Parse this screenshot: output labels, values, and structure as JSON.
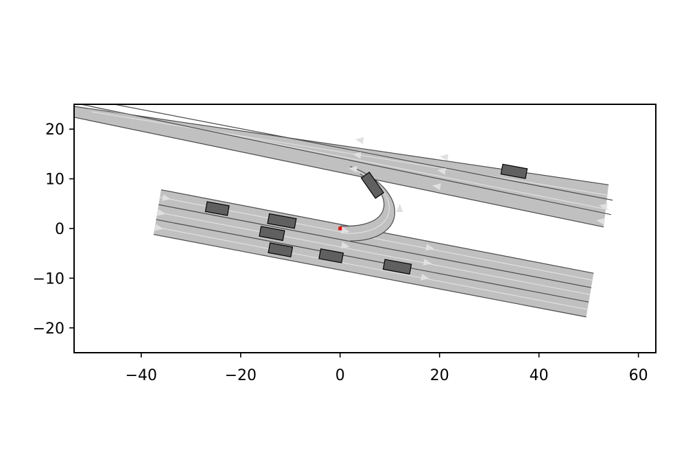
{
  "chart_data": {
    "type": "scatter",
    "title": "",
    "xlabel": "",
    "ylabel": "",
    "xlim": [
      -53.5,
      63.5
    ],
    "ylim": [
      -25,
      25
    ],
    "x_ticks": [
      -40,
      -20,
      0,
      20,
      40,
      60
    ],
    "y_ticks": [
      -20,
      -10,
      0,
      10,
      20
    ],
    "x_tick_labels": [
      "−40",
      "−20",
      "0",
      "20",
      "40",
      "60"
    ],
    "y_tick_labels": [
      "−20",
      "−10",
      "0",
      "10",
      "20"
    ],
    "grid": false,
    "colors": {
      "road": "#c0c0c0",
      "road_edge": "#4a4a4a",
      "lane_center": "#e0e0e0",
      "vehicle_fill": "#606060",
      "vehicle_edge": "#000000",
      "ego_marker": "#ff0000"
    },
    "roads": [
      {
        "name": "upper-road",
        "edges": [
          [
            [
              -55,
              24.8
            ],
            [
              54,
              8.8
            ]
          ],
          [
            [
              -55,
              22.7
            ],
            [
              53,
              0.3
            ]
          ]
        ],
        "dividers": [
          [
            [
              -55,
              25.6
            ],
            [
              54.5,
              2.8
            ]
          ],
          [
            [
              -47,
              25.3
            ],
            [
              54.8,
              5.7
            ]
          ]
        ],
        "lane_centers": [
          [
            [
              -50,
              24.4
            ],
            [
              54,
              3.8
            ]
          ],
          [
            [
              -50,
              23.5
            ],
            [
              54,
              6.7
            ]
          ]
        ],
        "arrows": [
          {
            "x": 4,
            "y": 17.8,
            "dir": -1
          },
          {
            "x": 3.5,
            "y": 14.8,
            "dir": -1
          },
          {
            "x": 2.7,
            "y": 12.0,
            "dir": -1
          },
          {
            "x": 21,
            "y": 14.4,
            "dir": -1
          },
          {
            "x": 20.5,
            "y": 11.6,
            "dir": -1
          },
          {
            "x": 19.5,
            "y": 8.5,
            "dir": -1
          },
          {
            "x": 53,
            "y": 4.5,
            "dir": -1
          },
          {
            "x": 52.5,
            "y": 1.5,
            "dir": -1
          }
        ]
      },
      {
        "name": "lower-road",
        "edges": [
          [
            [
              -36,
              7.8
            ],
            [
              51,
              -9
            ]
          ],
          [
            [
              -37.5,
              -1.2
            ],
            [
              49.5,
              -17.8
            ]
          ]
        ],
        "dividers": [
          [
            [
              -36.5,
              4.8
            ],
            [
              50.5,
              -11.9
            ]
          ],
          [
            [
              -37,
              1.8
            ],
            [
              50,
              -14.8
            ]
          ]
        ],
        "lane_centers": [
          [
            [
              -36.3,
              6.3
            ],
            [
              50.8,
              -10.4
            ]
          ],
          [
            [
              -36.8,
              3.3
            ],
            [
              50.3,
              -13.3
            ]
          ],
          [
            [
              -37.2,
              0.3
            ],
            [
              49.8,
              -16.3
            ]
          ]
        ],
        "arrows": [
          {
            "x": -35,
            "y": 6.1,
            "dir": 1
          },
          {
            "x": -36,
            "y": 3.1,
            "dir": 1
          },
          {
            "x": -36.5,
            "y": 0.1,
            "dir": 1
          },
          {
            "x": 1,
            "y": -0.5,
            "dir": 1
          },
          {
            "x": 1,
            "y": -3.5,
            "dir": 1
          },
          {
            "x": 18,
            "y": -3.9,
            "dir": 1
          },
          {
            "x": 17.5,
            "y": -6.9,
            "dir": 1
          },
          {
            "x": 17,
            "y": -9.9,
            "dir": 1
          }
        ]
      }
    ],
    "u_turn": {
      "outer": [
        [
          2,
          12.5
        ],
        [
          14,
          8
        ],
        [
          14,
          -2.5
        ],
        [
          2,
          -2.5
        ]
      ],
      "inner": [
        [
          4,
          11
        ],
        [
          11,
          7
        ],
        [
          11,
          0
        ],
        [
          0,
          0.5
        ]
      ],
      "arrow": {
        "x": 12,
        "y": 4,
        "dir": "up"
      }
    },
    "vehicles": [
      {
        "x": 35,
        "y": 11.5,
        "length": 5,
        "width": 2,
        "heading": -10.4
      },
      {
        "x": -24.7,
        "y": 4,
        "length": 4.5,
        "width": 2,
        "heading": -10.4
      },
      {
        "x": -11.7,
        "y": 1.5,
        "length": 5.5,
        "width": 2,
        "heading": -10.4
      },
      {
        "x": -13.7,
        "y": -1,
        "length": 4.8,
        "width": 2,
        "heading": -10.4
      },
      {
        "x": -12,
        "y": -4.3,
        "length": 4.6,
        "width": 2,
        "heading": -10.4
      },
      {
        "x": -1.8,
        "y": -5.5,
        "length": 4.6,
        "width": 2,
        "heading": -10.4
      },
      {
        "x": 11.5,
        "y": -7.7,
        "length": 5.4,
        "width": 2,
        "heading": -10.4
      },
      {
        "x": 6.5,
        "y": 8.7,
        "length": 5,
        "width": 2,
        "heading": -55
      }
    ],
    "ego": {
      "x": 0,
      "y": 0
    }
  }
}
